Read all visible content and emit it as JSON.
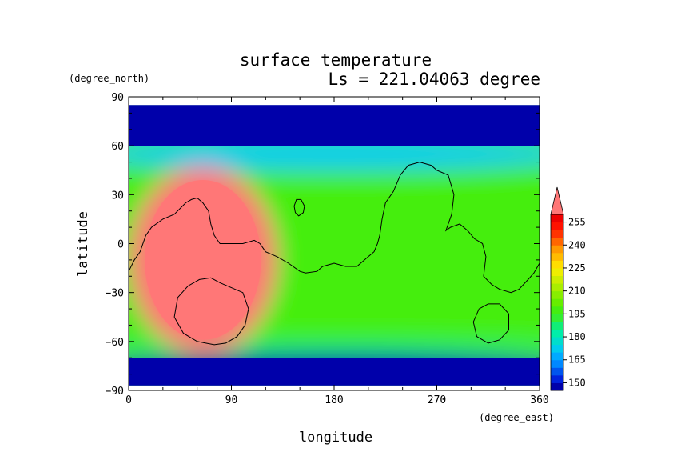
{
  "chart_data": {
    "type": "heatmap",
    "title": "surface temperature",
    "subtitle": "Ls = 221.04063 degree",
    "xlabel": "longitude",
    "ylabel": "latitude",
    "x_unit": "(degree_east)",
    "y_unit": "(degree_north)",
    "xlim": [
      0,
      360
    ],
    "ylim": [
      -90,
      90
    ],
    "plotted_lat_range": [
      -87,
      85
    ],
    "x_ticks": [
      "0",
      "90",
      "180",
      "270",
      "360"
    ],
    "y_ticks": [
      "90",
      "60",
      "30",
      "0",
      "−30",
      "−60",
      "−90"
    ],
    "colorbar": {
      "levels": [
        145,
        150,
        155,
        160,
        165,
        170,
        175,
        180,
        185,
        190,
        195,
        200,
        205,
        210,
        215,
        220,
        225,
        230,
        235,
        240,
        245,
        250,
        255,
        260
      ],
      "tick_labels": [
        "150",
        "165",
        "180",
        "195",
        "210",
        "225",
        "240",
        "255"
      ],
      "tick_values": [
        150,
        165,
        180,
        195,
        210,
        225,
        240,
        255
      ],
      "extend": "max",
      "colors": [
        "#0000aa",
        "#0022dd",
        "#0055ee",
        "#0088ff",
        "#00aaff",
        "#00ccee",
        "#00ddcc",
        "#00eeaa",
        "#11ee77",
        "#33ee33",
        "#44ee11",
        "#66ee00",
        "#88ee00",
        "#aaee00",
        "#ccee00",
        "#eeee00",
        "#ffdd00",
        "#ffbb00",
        "#ff9900",
        "#ff6600",
        "#ff3300",
        "#ff1100",
        "#ee0000",
        "#ff7777"
      ]
    },
    "regions": [
      {
        "name": "background",
        "value": 195
      },
      {
        "name": "north-polar",
        "value": 147,
        "lon": 180,
        "lat": 88,
        "rx": 220,
        "ry": 14
      },
      {
        "name": "south-polar",
        "value": 148,
        "lon": 180,
        "lat": -78,
        "rx": 220,
        "ry": 10
      },
      {
        "name": "north-band",
        "value": 170,
        "lon": 180,
        "lat": 55,
        "rx": 220,
        "ry": 10
      },
      {
        "name": "south-edge",
        "value": 185,
        "lon": 180,
        "lat": -64,
        "rx": 220,
        "ry": 4
      },
      {
        "name": "warm-hotspot",
        "value": 262,
        "lon": 65,
        "lat": -10,
        "rx": 65,
        "ry": 57
      }
    ],
    "contour_lines": [
      [
        [
          0,
          -17
        ],
        [
          5,
          -10
        ],
        [
          10,
          -5
        ],
        [
          15,
          5
        ],
        [
          20,
          10
        ],
        [
          30,
          15
        ],
        [
          40,
          18
        ],
        [
          50,
          25
        ],
        [
          55,
          27
        ],
        [
          60,
          28
        ],
        [
          65,
          25
        ],
        [
          70,
          20
        ],
        [
          72,
          12
        ],
        [
          75,
          5
        ],
        [
          80,
          0
        ],
        [
          90,
          0
        ],
        [
          100,
          0
        ],
        [
          110,
          2
        ],
        [
          115,
          0
        ],
        [
          120,
          -5
        ],
        [
          130,
          -8
        ],
        [
          140,
          -12
        ],
        [
          150,
          -17
        ],
        [
          155,
          -18
        ],
        [
          165,
          -17
        ],
        [
          170,
          -14
        ],
        [
          180,
          -12
        ],
        [
          190,
          -14
        ],
        [
          200,
          -14
        ],
        [
          210,
          -8
        ],
        [
          215,
          -5
        ],
        [
          218,
          0
        ],
        [
          220,
          5
        ],
        [
          222,
          15
        ],
        [
          225,
          25
        ],
        [
          232,
          32
        ],
        [
          238,
          42
        ],
        [
          245,
          48
        ],
        [
          255,
          50
        ],
        [
          265,
          48
        ],
        [
          270,
          45
        ],
        [
          280,
          42
        ],
        [
          285,
          30
        ],
        [
          283,
          18
        ],
        [
          278,
          8
        ],
        [
          282,
          10
        ],
        [
          290,
          12
        ],
        [
          297,
          8
        ],
        [
          303,
          3
        ],
        [
          310,
          0
        ],
        [
          313,
          -8
        ],
        [
          311,
          -20
        ],
        [
          318,
          -25
        ],
        [
          325,
          -28
        ],
        [
          335,
          -30
        ],
        [
          342,
          -28
        ],
        [
          350,
          -22
        ],
        [
          355,
          -18
        ],
        [
          360,
          -12
        ]
      ],
      [
        [
          40,
          -45
        ],
        [
          43,
          -33
        ],
        [
          52,
          -26
        ],
        [
          62,
          -22
        ],
        [
          72,
          -21
        ],
        [
          80,
          -24
        ],
        [
          90,
          -27
        ],
        [
          100,
          -30
        ],
        [
          105,
          -40
        ],
        [
          102,
          -50
        ],
        [
          95,
          -57
        ],
        [
          85,
          -61
        ],
        [
          75,
          -62
        ],
        [
          60,
          -60
        ],
        [
          48,
          -55
        ],
        [
          40,
          -45
        ]
      ],
      [
        [
          302,
          -48
        ],
        [
          307,
          -40
        ],
        [
          315,
          -37
        ],
        [
          325,
          -37
        ],
        [
          333,
          -43
        ],
        [
          333,
          -53
        ],
        [
          325,
          -59
        ],
        [
          315,
          -61
        ],
        [
          305,
          -57
        ],
        [
          302,
          -48
        ]
      ],
      [
        [
          145,
          23
        ],
        [
          147,
          27
        ],
        [
          151,
          27
        ],
        [
          154,
          23
        ],
        [
          153,
          19
        ],
        [
          149,
          17
        ],
        [
          146,
          19
        ],
        [
          145,
          23
        ]
      ]
    ]
  }
}
